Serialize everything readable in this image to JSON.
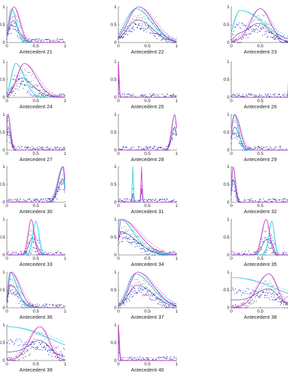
{
  "figure": {
    "x_ticks": [
      "0",
      "0.5",
      "1"
    ],
    "y_ticks": [
      "0",
      "0.5",
      "1"
    ],
    "series_colors": {
      "solid_magenta": "#c030c0",
      "dashed_magenta": "#e070e0",
      "solid_cyan": "#20c8d8",
      "dashed_cyan": "#60d8e8",
      "dots_dark": "#1a1a80",
      "dots_blue": "#2030d0",
      "dots_gray": "#808080",
      "blue_line": "#2020a0"
    }
  },
  "chart_data": [
    {
      "title": "Antecedent 21",
      "type": "line",
      "xlim": [
        0,
        1
      ],
      "ylim": [
        0,
        1
      ],
      "shape": "peak",
      "modes": [
        {
          "mu": 0.12,
          "sl": 0.07,
          "sr": 0.1,
          "h": 1
        },
        {
          "mu": 0.08,
          "sl": 0.05,
          "sr": 0.08,
          "h": 0.95
        }
      ]
    },
    {
      "title": "Antecedent 22",
      "type": "line",
      "xlim": [
        0,
        1
      ],
      "ylim": [
        0,
        1
      ],
      "shape": "peak",
      "modes": [
        {
          "mu": 0.35,
          "sl": 0.18,
          "sr": 0.25,
          "h": 1
        },
        {
          "mu": 0.3,
          "sl": 0.17,
          "sr": 0.27,
          "h": 0.95
        }
      ]
    },
    {
      "title": "Antecedent 23",
      "type": "line",
      "xlim": [
        0,
        1
      ],
      "ylim": [
        0,
        1
      ],
      "shape": "peak",
      "modes": [
        {
          "mu": 0.5,
          "sl": 0.17,
          "sr": 0.17,
          "h": 0.95
        },
        {
          "mu": 0.15,
          "sl": 0.1,
          "sr": 0.4,
          "h": 0.9
        }
      ]
    },
    {
      "title": "Antecedent 24",
      "type": "line",
      "xlim": [
        0,
        1
      ],
      "ylim": [
        0,
        1
      ],
      "shape": "peak",
      "modes": [
        {
          "mu": 0.3,
          "sl": 0.12,
          "sr": 0.2,
          "h": 0.95
        },
        {
          "mu": 0.15,
          "sl": 0.07,
          "sr": 0.15,
          "h": 0.95
        }
      ]
    },
    {
      "title": "Antecedent 25",
      "type": "line",
      "xlim": [
        0,
        1
      ],
      "ylim": [
        0,
        1
      ],
      "shape": "spike-left",
      "modes": [
        {
          "mu": 0,
          "sl": 0.01,
          "sr": 0.012,
          "h": 1
        },
        {
          "mu": 0,
          "sl": 0.01,
          "sr": 0.012,
          "h": 1
        }
      ]
    },
    {
      "title": "Antecedent 26",
      "type": "line",
      "xlim": [
        0,
        1
      ],
      "ylim": [
        0,
        1
      ],
      "shape": "spike-right",
      "modes": [
        {
          "mu": 1,
          "sl": 0.012,
          "sr": 0.01,
          "h": 1
        },
        {
          "mu": 1,
          "sl": 0.012,
          "sr": 0.01,
          "h": 1
        }
      ]
    },
    {
      "title": "Antecedent 27",
      "type": "line",
      "xlim": [
        0,
        1
      ],
      "ylim": [
        0,
        1
      ],
      "shape": "peak",
      "modes": [
        {
          "mu": 0.02,
          "sl": 0.02,
          "sr": 0.04,
          "h": 1
        },
        {
          "mu": 0.02,
          "sl": 0.02,
          "sr": 0.04,
          "h": 1
        }
      ]
    },
    {
      "title": "Antecedent 28",
      "type": "line",
      "xlim": [
        0,
        1
      ],
      "ylim": [
        0,
        1
      ],
      "shape": "peak",
      "modes": [
        {
          "mu": 0.97,
          "sl": 0.05,
          "sr": 0.03,
          "h": 1
        },
        {
          "mu": 0.97,
          "sl": 0.05,
          "sr": 0.03,
          "h": 1
        }
      ]
    },
    {
      "title": "Antecedent 29",
      "type": "line",
      "xlim": [
        0,
        1
      ],
      "ylim": [
        0,
        1
      ],
      "shape": "peak",
      "modes": [
        {
          "mu": 0.06,
          "sl": 0.05,
          "sr": 0.09,
          "h": 1
        },
        {
          "mu": 0.05,
          "sl": 0.04,
          "sr": 0.07,
          "h": 1
        }
      ]
    },
    {
      "title": "Antecedent 30",
      "type": "line",
      "xlim": [
        0,
        1
      ],
      "ylim": [
        0,
        1
      ],
      "shape": "peak",
      "modes": [
        {
          "mu": 0.97,
          "sl": 0.08,
          "sr": 0.03,
          "h": 1
        },
        {
          "mu": 0.96,
          "sl": 0.08,
          "sr": 0.03,
          "h": 1
        }
      ]
    },
    {
      "title": "Antecedent 31",
      "type": "line",
      "xlim": [
        0,
        1
      ],
      "ylim": [
        0,
        1
      ],
      "shape": "peak",
      "modes": [
        {
          "mu": 0.4,
          "sl": 0.01,
          "sr": 0.01,
          "h": 1
        },
        {
          "mu": 0.25,
          "sl": 0.01,
          "sr": 0.01,
          "h": 1
        }
      ]
    },
    {
      "title": "Antecedent 32",
      "type": "line",
      "xlim": [
        0,
        1
      ],
      "ylim": [
        0,
        1
      ],
      "shape": "peak",
      "modes": [
        {
          "mu": 0.03,
          "sl": 0.02,
          "sr": 0.04,
          "h": 1
        },
        {
          "mu": 0.03,
          "sl": 0.02,
          "sr": 0.04,
          "h": 1
        }
      ]
    },
    {
      "title": "Antecedent 33",
      "type": "line",
      "xlim": [
        0,
        1
      ],
      "ylim": [
        0,
        1
      ],
      "shape": "peak",
      "modes": [
        {
          "mu": 0.42,
          "sl": 0.05,
          "sr": 0.05,
          "h": 1
        },
        {
          "mu": 0.5,
          "sl": 0.05,
          "sr": 0.05,
          "h": 0.95
        }
      ]
    },
    {
      "title": "Antecedent 34",
      "type": "line",
      "xlim": [
        0,
        1
      ],
      "ylim": [
        0,
        1
      ],
      "shape": "peak",
      "modes": [
        {
          "mu": 0.05,
          "sl": 0.04,
          "sr": 0.3,
          "h": 1
        },
        {
          "mu": 0.02,
          "sl": 0.03,
          "sr": 0.25,
          "h": 1
        }
      ]
    },
    {
      "title": "Antecedent 35",
      "type": "line",
      "xlim": [
        0,
        1
      ],
      "ylim": [
        0,
        1
      ],
      "shape": "peak",
      "modes": [
        {
          "mu": 0.6,
          "sl": 0.07,
          "sr": 0.06,
          "h": 1
        },
        {
          "mu": 0.7,
          "sl": 0.05,
          "sr": 0.04,
          "h": 0.95
        }
      ]
    },
    {
      "title": "Antecedent 36",
      "type": "line",
      "xlim": [
        0,
        1
      ],
      "ylim": [
        0,
        1
      ],
      "shape": "peak",
      "modes": [
        {
          "mu": 0.07,
          "sl": 0.04,
          "sr": 0.15,
          "h": 1
        },
        {
          "mu": 0.05,
          "sl": 0.03,
          "sr": 0.12,
          "h": 1
        }
      ]
    },
    {
      "title": "Antecedent 37",
      "type": "line",
      "xlim": [
        0,
        1
      ],
      "ylim": [
        0,
        1
      ],
      "shape": "peak",
      "modes": [
        {
          "mu": 0.33,
          "sl": 0.14,
          "sr": 0.28,
          "h": 1
        },
        {
          "mu": 0.28,
          "sl": 0.12,
          "sr": 0.3,
          "h": 0.95
        }
      ]
    },
    {
      "title": "Antecedent 38",
      "type": "line",
      "xlim": [
        0,
        1
      ],
      "ylim": [
        0,
        1
      ],
      "shape": "peak",
      "modes": [
        {
          "mu": 0.65,
          "sl": 0.2,
          "sr": 0.14,
          "h": 0.95
        },
        {
          "mu": 0,
          "sl": 0.05,
          "sr": 0.8,
          "h": 0.85
        }
      ]
    },
    {
      "title": "Antecedent 39",
      "type": "line",
      "xlim": [
        0,
        1
      ],
      "ylim": [
        0,
        1
      ],
      "shape": "peak",
      "modes": [
        {
          "mu": 0.57,
          "sl": 0.18,
          "sr": 0.15,
          "h": 0.95
        },
        {
          "mu": 0,
          "sl": 0.05,
          "sr": 0.8,
          "h": 0.95
        }
      ]
    },
    {
      "title": "Antecedent 40",
      "type": "line",
      "xlim": [
        0,
        1
      ],
      "ylim": [
        0,
        1
      ],
      "shape": "spike-left",
      "modes": [
        {
          "mu": 0,
          "sl": 0.01,
          "sr": 0.015,
          "h": 1
        },
        {
          "mu": 0,
          "sl": 0.01,
          "sr": 0.015,
          "h": 1
        }
      ]
    }
  ]
}
